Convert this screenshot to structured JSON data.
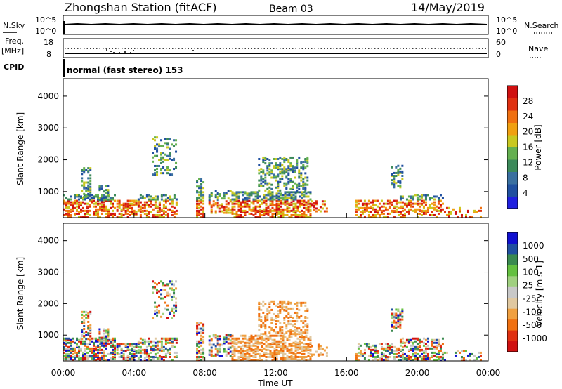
{
  "header": {
    "station": "Zhongshan Station (fitACF)",
    "beam": "Beam 03",
    "date": "14/May/2019"
  },
  "top_panels": {
    "nsky_label": "N.Sky",
    "nsearch_label": "N.Search",
    "nsky_ticks": [
      "10^5",
      "10^0"
    ],
    "nsearch_ticks": [
      "10^5",
      "10^0"
    ],
    "freq_label_1": "Freq.",
    "freq_label_2": "[MHz]",
    "freq_ticks": [
      "18",
      "8"
    ],
    "nave_label": "Nave",
    "nave_ticks": [
      "60",
      "0"
    ],
    "cpid_label": "CPID",
    "cpid_text": "normal (fast stereo) 153"
  },
  "colors": {
    "power_scale": [
      "#2020e0",
      "#2050a0",
      "#3a70a0",
      "#3c8a5a",
      "#64b050",
      "#c8c820",
      "#f0a010",
      "#f07010",
      "#e03010",
      "#d01010"
    ],
    "velocity_scale": [
      "#1010d0",
      "#2050a0",
      "#3a8a50",
      "#64c040",
      "#a0d080",
      "#c8c8c8",
      "#e0c8a0",
      "#f0a040",
      "#f07010",
      "#e03010",
      "#d01010"
    ]
  },
  "chart_data": [
    {
      "type": "heatmap",
      "title": "Power",
      "ylabel": "Slant Range [km]",
      "xlabel": "",
      "x_ticks": [
        "00:00",
        "04:00",
        "08:00",
        "12:00",
        "16:00",
        "20:00",
        "00:00"
      ],
      "y_ticks": [
        "1000",
        "2000",
        "3000",
        "4000"
      ],
      "ylim": [
        180,
        4550
      ],
      "xlim_hours": [
        0,
        24
      ],
      "colorbar_label": "Power [dB]",
      "colorbar_ticks": [
        "28",
        "24",
        "20",
        "16",
        "12",
        "8",
        "4"
      ],
      "clim": [
        0,
        32
      ]
    },
    {
      "type": "heatmap",
      "title": "Velocity",
      "ylabel": "Slant Range [km]",
      "xlabel": "Time UT",
      "x_ticks": [
        "00:00",
        "04:00",
        "08:00",
        "12:00",
        "16:00",
        "20:00",
        "00:00"
      ],
      "y_ticks": [
        "1000",
        "2000",
        "3000",
        "4000"
      ],
      "ylim": [
        180,
        4550
      ],
      "xlim_hours": [
        0,
        24
      ],
      "colorbar_label": "Velocity [m s-1]",
      "colorbar_ticks": [
        "1000",
        "500",
        "100",
        "25",
        "-25",
        "-100",
        "-500",
        "-1000"
      ]
    }
  ]
}
